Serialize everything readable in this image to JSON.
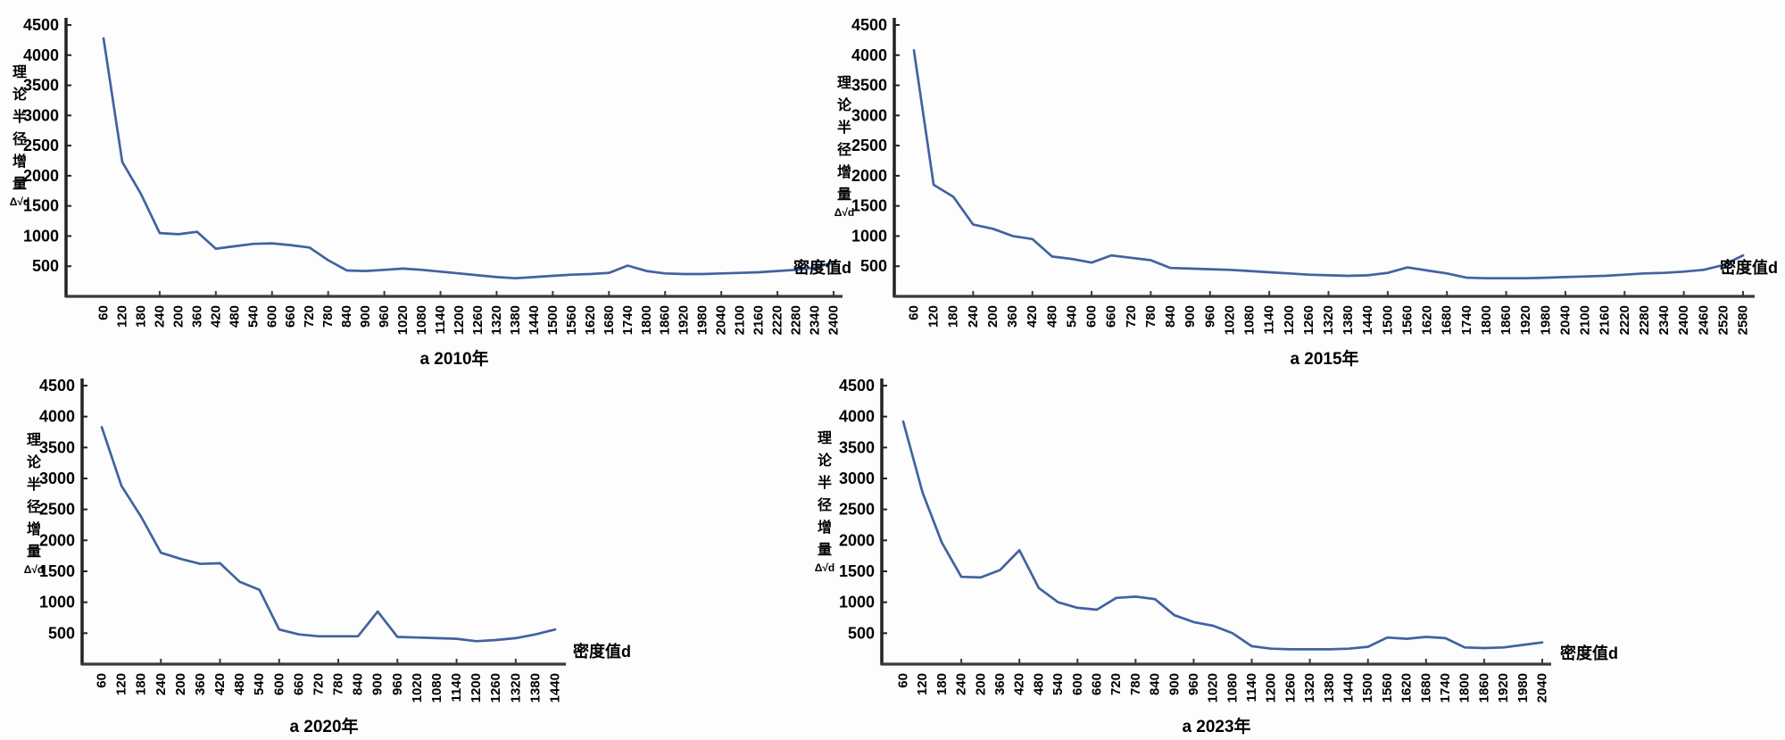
{
  "figure": {
    "description_labels": {
      "y_axis_title": "理论半径增量",
      "y_axis_formula": "Δ√d",
      "x_axis_title": "密度值d"
    },
    "colors": {
      "line": "#41639e",
      "axis": "#222222",
      "text": "#000000"
    }
  },
  "chart_data": [
    {
      "type": "line",
      "title": "a 2010年",
      "xlabel": "密度值d",
      "ylabel": "理论半径增量",
      "ylabel_formula": "Δ√d",
      "ylim": [
        0,
        4500
      ],
      "y_ticks": [
        4500,
        4000,
        3500,
        3000,
        2500,
        2000,
        1500,
        1000,
        500
      ],
      "grid": false,
      "legend": "none",
      "categories": [
        "60",
        "120",
        "180",
        "240",
        "200",
        "360",
        "420",
        "480",
        "540",
        "600",
        "660",
        "720",
        "780",
        "840",
        "900",
        "960",
        "1020",
        "1080",
        "1140",
        "1200",
        "1260",
        "1320",
        "1380",
        "1440",
        "1500",
        "1560",
        "1620",
        "1680",
        "1740",
        "1800",
        "1860",
        "1920",
        "1980",
        "2040",
        "2100",
        "2160",
        "2220",
        "2280",
        "2340",
        "2400"
      ],
      "values": [
        4280,
        2230,
        1700,
        1050,
        1030,
        1070,
        790,
        830,
        870,
        880,
        850,
        810,
        600,
        430,
        420,
        440,
        460,
        440,
        410,
        380,
        350,
        320,
        300,
        320,
        340,
        360,
        370,
        390,
        510,
        420,
        380,
        370,
        370,
        380,
        390,
        400,
        420,
        440,
        480,
        560
      ]
    },
    {
      "type": "line",
      "title": "a 2015年",
      "xlabel": "密度值d",
      "ylabel": "理论半径增量",
      "ylabel_formula": "Δ√d",
      "ylim": [
        0,
        4500
      ],
      "y_ticks": [
        4500,
        4000,
        3500,
        3000,
        2500,
        2000,
        1500,
        1000,
        500
      ],
      "grid": false,
      "legend": "none",
      "categories": [
        "60",
        "120",
        "180",
        "240",
        "200",
        "360",
        "420",
        "480",
        "540",
        "600",
        "660",
        "720",
        "780",
        "840",
        "900",
        "960",
        "1020",
        "1080",
        "1140",
        "1200",
        "1260",
        "1320",
        "1380",
        "1440",
        "1500",
        "1560",
        "1620",
        "1680",
        "1740",
        "1800",
        "1860",
        "1920",
        "1980",
        "2040",
        "2100",
        "2160",
        "2220",
        "2280",
        "2340",
        "2400",
        "2460",
        "2520",
        "2580"
      ],
      "values": [
        4080,
        1850,
        1650,
        1190,
        1120,
        1000,
        950,
        660,
        620,
        560,
        680,
        640,
        600,
        470,
        460,
        450,
        440,
        420,
        400,
        380,
        360,
        350,
        340,
        350,
        390,
        480,
        430,
        380,
        310,
        300,
        300,
        300,
        310,
        320,
        330,
        340,
        360,
        380,
        390,
        410,
        440,
        520,
        680
      ]
    },
    {
      "type": "line",
      "title": "a 2020年",
      "xlabel": "密度值d",
      "ylabel": "理论半径增量",
      "ylabel_formula": "Δ√d",
      "ylim": [
        0,
        4500
      ],
      "y_ticks": [
        4500,
        4000,
        3500,
        3000,
        2500,
        2000,
        1500,
        1000,
        500
      ],
      "grid": false,
      "legend": "none",
      "categories": [
        "60",
        "120",
        "180",
        "240",
        "200",
        "360",
        "420",
        "480",
        "540",
        "600",
        "660",
        "720",
        "780",
        "840",
        "900",
        "960",
        "1020",
        "1080",
        "1140",
        "1200",
        "1260",
        "1320",
        "1380",
        "1440"
      ],
      "values": [
        3830,
        2880,
        2380,
        1800,
        1700,
        1620,
        1630,
        1330,
        1200,
        560,
        480,
        450,
        450,
        450,
        850,
        440,
        430,
        420,
        410,
        370,
        390,
        420,
        480,
        560
      ]
    },
    {
      "type": "line",
      "title": "a 2023年",
      "xlabel": "密度值d",
      "ylabel": "理论半径增量",
      "ylabel_formula": "Δ√d",
      "ylim": [
        0,
        4500
      ],
      "y_ticks": [
        4500,
        4000,
        3500,
        3000,
        2500,
        2000,
        1500,
        1000,
        500
      ],
      "grid": false,
      "legend": "none",
      "categories": [
        "60",
        "120",
        "180",
        "240",
        "200",
        "360",
        "420",
        "480",
        "540",
        "600",
        "660",
        "720",
        "780",
        "840",
        "900",
        "960",
        "1020",
        "1080",
        "1140",
        "1200",
        "1260",
        "1320",
        "1380",
        "1440",
        "1500",
        "1560",
        "1620",
        "1680",
        "1740",
        "1800",
        "1860",
        "1920",
        "1980",
        "2040"
      ],
      "values": [
        3920,
        2770,
        1960,
        1410,
        1400,
        1520,
        1840,
        1230,
        1000,
        910,
        880,
        1070,
        1090,
        1050,
        790,
        680,
        620,
        500,
        290,
        250,
        240,
        240,
        240,
        250,
        280,
        430,
        410,
        440,
        420,
        270,
        260,
        270,
        310,
        350
      ]
    }
  ]
}
